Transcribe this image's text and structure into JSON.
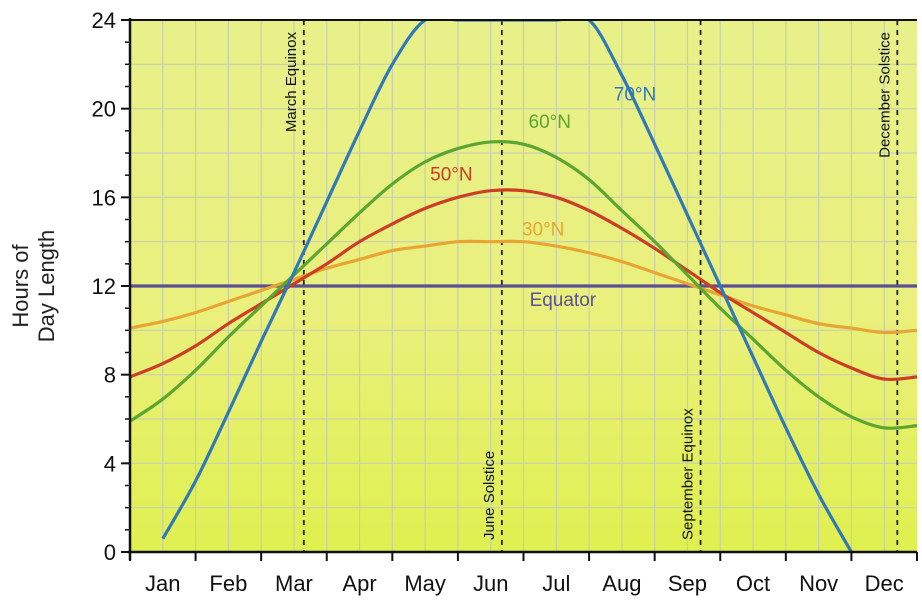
{
  "chart_data": {
    "type": "line",
    "ylabel_lines": [
      "Hours of",
      "Day Length"
    ],
    "ylim": [
      0,
      24
    ],
    "yticks": [
      "0",
      "4",
      "8",
      "12",
      "16",
      "20",
      "24"
    ],
    "xlim": [
      0,
      12
    ],
    "x_unit": "months from January 1",
    "months": [
      "Jan",
      "Feb",
      "Mar",
      "Apr",
      "May",
      "Jun",
      "Jul",
      "Aug",
      "Sep",
      "Oct",
      "Nov",
      "Dec"
    ],
    "grid": true,
    "events": [
      {
        "label": "March Equinox",
        "x": 2.65
      },
      {
        "label": "June Solstice",
        "x": 5.67
      },
      {
        "label": "September Equinox",
        "x": 8.7
      },
      {
        "label": "December Solstice",
        "x": 11.7
      }
    ],
    "x": [
      0,
      0.5,
      1,
      1.5,
      2,
      2.5,
      3,
      3.5,
      4,
      4.5,
      5,
      5.5,
      6,
      6.5,
      7,
      7.5,
      8,
      8.5,
      9,
      9.5,
      10,
      10.5,
      11,
      11.5,
      12
    ],
    "series": [
      {
        "name": "Equator",
        "color": "#5b4f96",
        "values": [
          12,
          12,
          12,
          12,
          12,
          12,
          12,
          12,
          12,
          12,
          12,
          12,
          12,
          12,
          12,
          12,
          12,
          12,
          12,
          12,
          12,
          12,
          12,
          12,
          12
        ]
      },
      {
        "name": "30°N",
        "color": "#e8a533",
        "values": [
          10.1,
          10.4,
          10.8,
          11.3,
          11.8,
          12.3,
          12.8,
          13.2,
          13.6,
          13.8,
          14.0,
          14.0,
          14.0,
          13.8,
          13.5,
          13.1,
          12.6,
          12.1,
          11.6,
          11.1,
          10.7,
          10.3,
          10.1,
          9.9,
          10.0
        ]
      },
      {
        "name": "50°N",
        "color": "#cc3d25",
        "values": [
          7.9,
          8.5,
          9.3,
          10.3,
          11.2,
          12.1,
          13.0,
          14.0,
          14.8,
          15.5,
          16.0,
          16.3,
          16.3,
          16.0,
          15.4,
          14.6,
          13.7,
          12.7,
          11.7,
          10.8,
          9.9,
          9.0,
          8.3,
          7.8,
          7.9
        ]
      },
      {
        "name": "60°N",
        "color": "#5aa631",
        "values": [
          5.9,
          6.9,
          8.2,
          9.7,
          11.1,
          12.5,
          13.9,
          15.3,
          16.6,
          17.6,
          18.2,
          18.5,
          18.4,
          17.8,
          16.8,
          15.4,
          14.0,
          12.5,
          11.0,
          9.6,
          8.2,
          7.0,
          6.1,
          5.6,
          5.7
        ]
      },
      {
        "name": "70°N",
        "color": "#2f79b8",
        "values": [
          null,
          0.6,
          3.2,
          6.3,
          9.5,
          12.6,
          15.8,
          19.0,
          22.0,
          24,
          24,
          24,
          24,
          24,
          24,
          21.5,
          18.4,
          15.2,
          12.0,
          8.8,
          5.6,
          2.6,
          0,
          null,
          null
        ]
      }
    ]
  }
}
